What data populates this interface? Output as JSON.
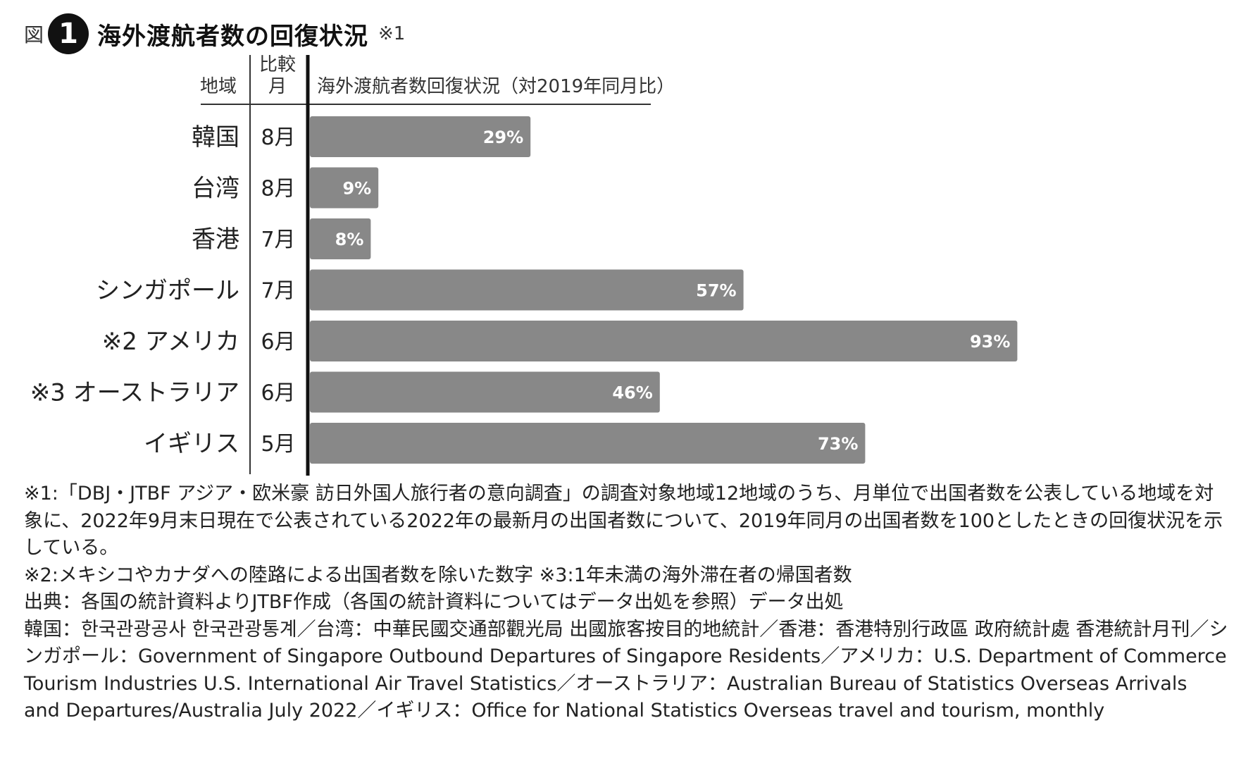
{
  "title": {
    "prefix": "図",
    "number": "1",
    "text": "海外渡航者数の回復状況",
    "note": "※1"
  },
  "chart_data": {
    "type": "bar",
    "orientation": "horizontal",
    "headers": {
      "region": "地域",
      "month_line1": "比較",
      "month_line2": "月",
      "value": "海外渡航者数回復状況（対2019年同月比）"
    },
    "categories": [
      "韓国",
      "台湾",
      "香港",
      "シンガポール",
      "※2 アメリカ",
      "※3 オーストラリア",
      "イギリス"
    ],
    "months": [
      "8月",
      "8月",
      "7月",
      "7月",
      "6月",
      "6月",
      "5月"
    ],
    "values": [
      29,
      9,
      8,
      57,
      93,
      46,
      73
    ],
    "value_labels": [
      "29%",
      "9%",
      "8%",
      "57%",
      "93%",
      "46%",
      "73%"
    ],
    "xlim": [
      0,
      100
    ],
    "grid": false,
    "bar_color": "#888888"
  },
  "notes": {
    "note1": "※1:「DBJ・JTBF アジア・欧米豪 訪日外国人旅行者の意向調査」の調査対象地域12地域のうち、月単位で出国者数を公表している地域を対象に、2022年9月末日現在で公表されている2022年の最新月の出国者数について、2019年同月の出国者数を100としたときの回復状況を示している。",
    "note2": "※2:メキシコやカナダへの陸路による出国者数を除いた数字 ※3:1年未満の海外滞在者の帰国者数",
    "source": "出典：各国の統計資料よりJTBF作成（各国の統計資料についてはデータ出処を参照）データ出処",
    "sources_detail": "韓国：한국관광공사 한국관광통계／台湾：中華民國交通部觀光局 出國旅客按目的地統計／香港：香港特別行政區 政府統計處 香港統計月刊／シンガポール：Government of Singapore Outbound Departures of Singapore Residents／アメリカ：U.S. Department of Commerce Tourism Industries U.S. International Air Travel Statistics／オーストラリア：Australian Bureau of Statistics Overseas Arrivals and Departures/Australia July 2022／イギリス：Office for National Statistics Overseas travel and tourism, monthly"
  }
}
